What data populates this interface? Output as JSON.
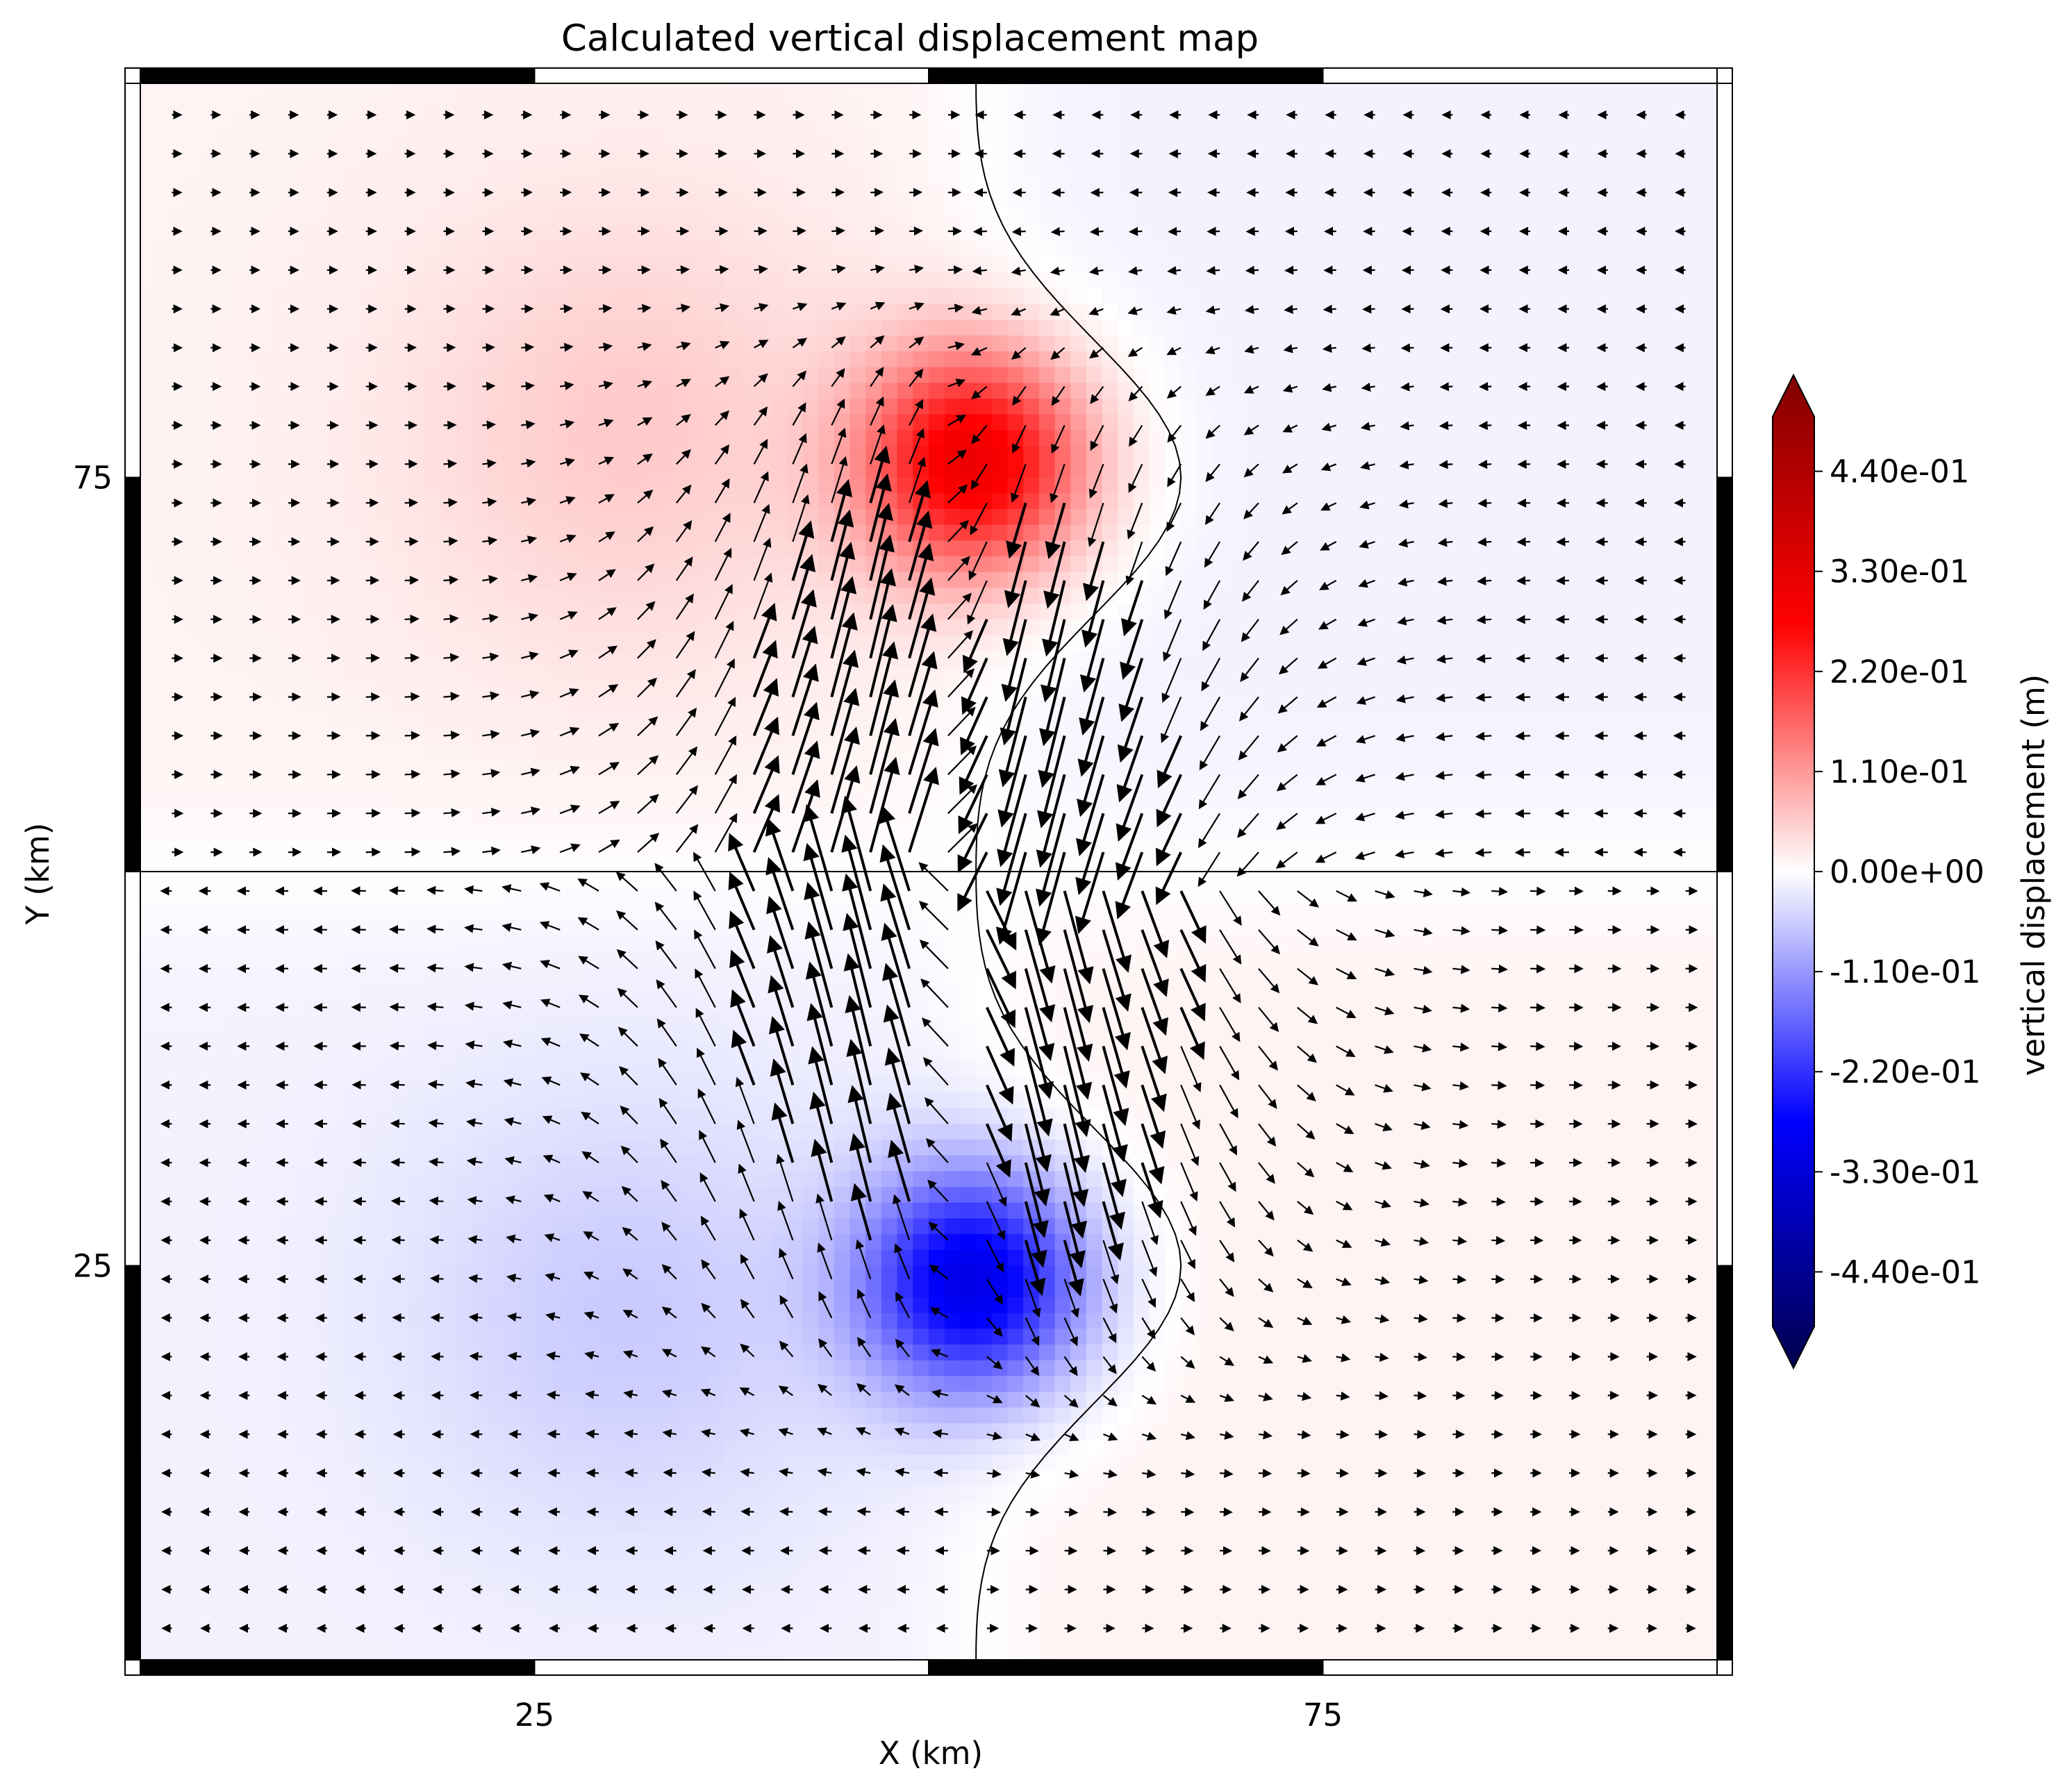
{
  "chart_data": {
    "type": "heatmap",
    "title": "Calculated vertical displacement map",
    "xlabel": "X (km)",
    "ylabel": "Y (km)",
    "xlim": [
      0,
      100
    ],
    "ylim": [
      0,
      100
    ],
    "x_ticks": [
      {
        "value": 25,
        "label": "25"
      },
      {
        "value": 75,
        "label": "75"
      }
    ],
    "y_ticks": [
      {
        "value": 75,
        "label": "75"
      },
      {
        "value": 25,
        "label": "25"
      }
    ],
    "colorbar": {
      "label": "vertical displacement (m)",
      "colormap": "seismic",
      "range": [
        -0.5,
        0.5
      ],
      "extend": "both",
      "ticks": [
        {
          "value": 0.44,
          "label": "4.40e-01"
        },
        {
          "value": 0.33,
          "label": "3.30e-01"
        },
        {
          "value": 0.22,
          "label": "2.20e-01"
        },
        {
          "value": 0.11,
          "label": "1.10e-01"
        },
        {
          "value": 0.0,
          "label": "0.00e+00"
        },
        {
          "value": -0.11,
          "label": "-1.10e-01"
        },
        {
          "value": -0.22,
          "label": "-2.20e-01"
        },
        {
          "value": -0.33,
          "label": "-3.30e-01"
        },
        {
          "value": -0.44,
          "label": "-4.40e-01"
        }
      ]
    },
    "displacement_sources": [
      {
        "x": 53,
        "y": 76,
        "peak": 0.28,
        "sigma": 5,
        "note": "uplift lobe"
      },
      {
        "x": 53,
        "y": 24,
        "peak": -0.28,
        "sigma": 5,
        "note": "subsidence lobe"
      },
      {
        "x": 31,
        "y": 78,
        "peak": 0.04,
        "sigma": 10
      },
      {
        "x": 31,
        "y": 22,
        "peak": -0.04,
        "sigma": 10
      }
    ],
    "fault_trace": {
      "x": [
        50,
        50
      ],
      "y": [
        25,
        75
      ]
    },
    "zero_contour_line": "sinuous N-S line through x≈53 at the edges, bulging to x≈66 near y=75 and y=25",
    "background_sign": {
      "upper_left": "positive",
      "upper_right": "negative",
      "lower_left": "negative",
      "lower_right": "positive"
    },
    "horizontal_displacement_vectors": "quiver field on a 40×40 grid; strongest near the fault (x≈46–60), pointing south at x<52 and north at x>52",
    "frame": "alternating black/white boxed border, segment length 25 km"
  }
}
